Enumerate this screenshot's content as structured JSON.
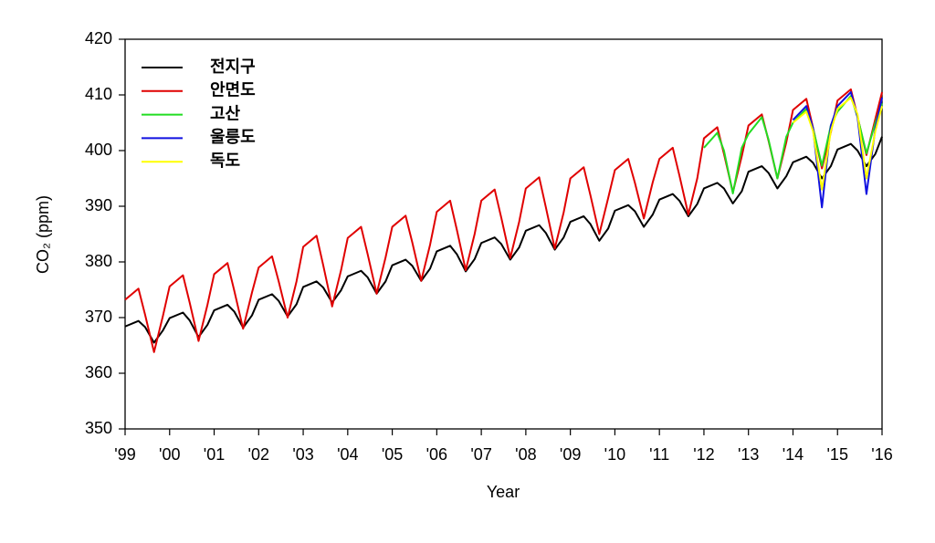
{
  "chart_data": {
    "type": "line",
    "xlabel": "Year",
    "ylabel": "CO₂ (ppm)",
    "xlim": [
      1999,
      2016
    ],
    "ylim": [
      350,
      420
    ],
    "xticks": [
      {
        "value": 1999,
        "label": "'99"
      },
      {
        "value": 2000,
        "label": "'00"
      },
      {
        "value": 2001,
        "label": "'01"
      },
      {
        "value": 2002,
        "label": "'02"
      },
      {
        "value": 2003,
        "label": "'03"
      },
      {
        "value": 2004,
        "label": "'04"
      },
      {
        "value": 2005,
        "label": "'05"
      },
      {
        "value": 2006,
        "label": "'06"
      },
      {
        "value": 2007,
        "label": "'07"
      },
      {
        "value": 2008,
        "label": "'08"
      },
      {
        "value": 2009,
        "label": "'09"
      },
      {
        "value": 2010,
        "label": "'10"
      },
      {
        "value": 2011,
        "label": "'11"
      },
      {
        "value": 2012,
        "label": "'12"
      },
      {
        "value": 2013,
        "label": "'13"
      },
      {
        "value": 2014,
        "label": "'14"
      },
      {
        "value": 2015,
        "label": "'15"
      },
      {
        "value": 2016,
        "label": "'16"
      }
    ],
    "yticks": [
      350,
      360,
      370,
      380,
      390,
      400,
      410,
      420
    ],
    "legend": "upper-left",
    "grid": false,
    "x": [
      1999,
      1999.3,
      1999.45,
      1999.65,
      1999.85,
      2000,
      2000.3,
      2000.45,
      2000.65,
      2000.85,
      2001,
      2001.3,
      2001.45,
      2001.65,
      2001.85,
      2002,
      2002.3,
      2002.45,
      2002.65,
      2002.85,
      2003,
      2003.3,
      2003.45,
      2003.65,
      2003.85,
      2004,
      2004.3,
      2004.45,
      2004.65,
      2004.85,
      2005,
      2005.3,
      2005.45,
      2005.65,
      2005.85,
      2006,
      2006.3,
      2006.45,
      2006.65,
      2006.85,
      2007,
      2007.3,
      2007.45,
      2007.65,
      2007.85,
      2008,
      2008.3,
      2008.45,
      2008.65,
      2008.85,
      2009,
      2009.3,
      2009.45,
      2009.65,
      2009.85,
      2010,
      2010.3,
      2010.45,
      2010.65,
      2010.85,
      2011,
      2011.3,
      2011.45,
      2011.65,
      2011.85,
      2012,
      2012.3,
      2012.45,
      2012.65,
      2012.85,
      2013,
      2013.3,
      2013.45,
      2013.65,
      2013.85,
      2014,
      2014.3,
      2014.45,
      2014.65,
      2014.85,
      2015,
      2015.3,
      2015.45,
      2015.65,
      2015.85,
      2016
    ],
    "series": [
      {
        "name": "전지구",
        "color": "#000000",
        "values": [
          368.4,
          369.4,
          368.3,
          365.5,
          367.7,
          369.9,
          370.9,
          369.5,
          366.5,
          368.7,
          371.3,
          372.3,
          371.1,
          368.2,
          370.4,
          373.2,
          374.2,
          373.0,
          370.2,
          372.4,
          375.5,
          376.5,
          375.4,
          372.7,
          374.9,
          377.4,
          378.4,
          377.2,
          374.3,
          376.5,
          379.4,
          380.4,
          379.3,
          376.6,
          378.8,
          381.9,
          382.9,
          381.4,
          378.3,
          380.5,
          383.4,
          384.4,
          383.2,
          380.4,
          382.6,
          385.6,
          386.6,
          385.2,
          382.2,
          384.4,
          387.2,
          388.2,
          386.8,
          383.8,
          386.0,
          389.2,
          390.2,
          389.1,
          386.3,
          388.5,
          391.2,
          392.2,
          391.0,
          388.2,
          390.4,
          393.2,
          394.2,
          393.2,
          390.5,
          392.7,
          396.2,
          397.2,
          396.0,
          393.2,
          395.4,
          397.9,
          398.9,
          397.8,
          395.0,
          397.2,
          400.2,
          401.2,
          400.0,
          397.2,
          399.4,
          402.5
        ]
      },
      {
        "name": "안면도",
        "color": "#e00000",
        "values": [
          373.2,
          375.2,
          370.5,
          363.8,
          370.3,
          375.6,
          377.6,
          372.7,
          365.8,
          372.3,
          377.8,
          379.8,
          374.9,
          368.0,
          374.5,
          379.0,
          381.0,
          376.5,
          370.0,
          376.5,
          382.7,
          384.7,
          379.4,
          372.0,
          378.5,
          384.3,
          386.3,
          381.3,
          374.3,
          380.8,
          386.3,
          388.3,
          383.5,
          376.6,
          383.1,
          389.0,
          391.0,
          385.8,
          378.5,
          385.0,
          391.0,
          393.0,
          387.9,
          380.7,
          387.2,
          393.2,
          395.2,
          389.8,
          382.4,
          388.9,
          395.0,
          397.0,
          392.0,
          385.0,
          391.5,
          396.5,
          398.5,
          394.2,
          387.8,
          394.3,
          398.5,
          400.5,
          395.5,
          388.5,
          395.0,
          402.2,
          404.2,
          399.4,
          392.5,
          399.0,
          404.5,
          406.5,
          401.8,
          395.0,
          401.5,
          407.3,
          409.3,
          404.1,
          396.8,
          403.3,
          409.0,
          411.0,
          406.1,
          399.2,
          405.7,
          410.5
        ]
      },
      {
        "name": "고산",
        "color": "#22dd22",
        "values": [
          null,
          null,
          null,
          null,
          null,
          null,
          null,
          null,
          null,
          null,
          null,
          null,
          null,
          null,
          null,
          null,
          null,
          null,
          null,
          null,
          null,
          null,
          null,
          null,
          null,
          null,
          null,
          null,
          null,
          null,
          null,
          null,
          null,
          null,
          null,
          null,
          null,
          null,
          null,
          null,
          null,
          null,
          null,
          null,
          null,
          null,
          null,
          null,
          null,
          null,
          null,
          null,
          null,
          null,
          null,
          null,
          null,
          null,
          null,
          null,
          null,
          null,
          null,
          null,
          null,
          400.5,
          403.2,
          400.0,
          392.3,
          400.5,
          403.0,
          406.0,
          402.0,
          395.0,
          402.5,
          405.0,
          407.5,
          404.0,
          397.3,
          404.5,
          407.0,
          409.8,
          406.0,
          399.5,
          405.0,
          408.5
        ]
      },
      {
        "name": "울릉도",
        "color": "#1010e0",
        "values": [
          null,
          null,
          null,
          null,
          null,
          null,
          null,
          null,
          null,
          null,
          null,
          null,
          null,
          null,
          null,
          null,
          null,
          null,
          null,
          null,
          null,
          null,
          null,
          null,
          null,
          null,
          null,
          null,
          null,
          null,
          null,
          null,
          null,
          null,
          null,
          null,
          null,
          null,
          null,
          null,
          null,
          null,
          null,
          null,
          null,
          null,
          null,
          null,
          null,
          null,
          null,
          null,
          null,
          null,
          null,
          null,
          null,
          null,
          null,
          null,
          null,
          null,
          null,
          null,
          null,
          null,
          null,
          null,
          null,
          null,
          null,
          null,
          null,
          null,
          null,
          405.5,
          408.0,
          404.0,
          389.8,
          404.5,
          408.0,
          410.5,
          406.0,
          392.2,
          404.0,
          409.5
        ]
      },
      {
        "name": "독도",
        "color": "#ffff00",
        "values": [
          null,
          null,
          null,
          null,
          null,
          null,
          null,
          null,
          null,
          null,
          null,
          null,
          null,
          null,
          null,
          null,
          null,
          null,
          null,
          null,
          null,
          null,
          null,
          null,
          null,
          null,
          null,
          null,
          null,
          null,
          null,
          null,
          null,
          null,
          null,
          null,
          null,
          null,
          null,
          null,
          null,
          null,
          null,
          null,
          null,
          null,
          null,
          null,
          null,
          null,
          null,
          null,
          null,
          null,
          null,
          null,
          null,
          null,
          null,
          null,
          null,
          null,
          null,
          null,
          null,
          null,
          null,
          null,
          null,
          null,
          null,
          null,
          null,
          null,
          null,
          405.0,
          407.0,
          403.5,
          393.0,
          403.5,
          407.5,
          409.5,
          406.5,
          395.0,
          403.5,
          408.0
        ]
      }
    ]
  }
}
